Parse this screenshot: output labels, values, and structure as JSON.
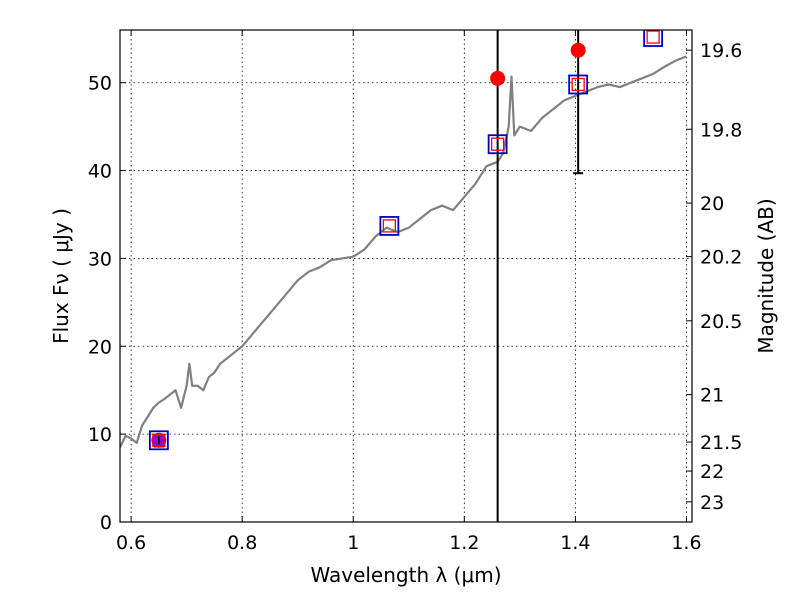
{
  "chart_data": {
    "type": "line",
    "xlabel": "Wavelength  λ (μm)",
    "ylabel_left": "Flux  Fν  ( μJy )",
    "ylabel_right": "Magnitude (AB)",
    "xlim": [
      0.58,
      1.61
    ],
    "ylim": [
      0,
      56
    ],
    "grid": true,
    "x_ticks": [
      0.6,
      0.8,
      1.0,
      1.2,
      1.4,
      1.6
    ],
    "x_tick_labels": [
      "0.6",
      "0.8",
      "1",
      "1.2",
      "1.4",
      "1.6"
    ],
    "y_ticks": [
      0,
      10,
      20,
      30,
      40,
      50
    ],
    "y_tick_labels": [
      "0",
      "10",
      "20",
      "30",
      "40",
      "50"
    ],
    "right_ticks": [
      {
        "flux": 53.7,
        "label": "19.6"
      },
      {
        "flux": 44.7,
        "label": "19.8"
      },
      {
        "flux": 36.3,
        "label": "20"
      },
      {
        "flux": 30.2,
        "label": "20.2"
      },
      {
        "flux": 22.9,
        "label": "20.5"
      },
      {
        "flux": 14.5,
        "label": "21"
      },
      {
        "flux": 9.1,
        "label": "21.5"
      },
      {
        "flux": 5.8,
        "label": "22"
      },
      {
        "flux": 2.3,
        "label": "23"
      }
    ],
    "vertical_lines": [
      {
        "x": 1.26,
        "color": "#000000"
      }
    ],
    "colors": {
      "spectrum": "#808080",
      "observed": "#ff0000",
      "model_box": "#0000cc",
      "model_inner": "#ff0000",
      "first_point": "#9900cc"
    },
    "spectrum": {
      "x": [
        0.58,
        0.59,
        0.6,
        0.61,
        0.62,
        0.63,
        0.64,
        0.65,
        0.66,
        0.67,
        0.68,
        0.69,
        0.7,
        0.705,
        0.71,
        0.72,
        0.73,
        0.74,
        0.75,
        0.76,
        0.77,
        0.78,
        0.79,
        0.8,
        0.82,
        0.84,
        0.86,
        0.88,
        0.9,
        0.92,
        0.94,
        0.96,
        0.98,
        1.0,
        1.02,
        1.04,
        1.06,
        1.08,
        1.1,
        1.12,
        1.14,
        1.16,
        1.18,
        1.2,
        1.22,
        1.24,
        1.26,
        1.27,
        1.28,
        1.285,
        1.29,
        1.3,
        1.32,
        1.34,
        1.36,
        1.38,
        1.4,
        1.42,
        1.44,
        1.46,
        1.48,
        1.5,
        1.52,
        1.54,
        1.56,
        1.58,
        1.6
      ],
      "y": [
        8.5,
        9.8,
        9.5,
        9.0,
        11.0,
        12.0,
        13.0,
        13.6,
        14.0,
        14.5,
        15.0,
        13.0,
        15.5,
        18.0,
        15.5,
        15.5,
        15.0,
        16.5,
        17.0,
        18.0,
        18.5,
        19.0,
        19.5,
        20.0,
        21.5,
        23.0,
        24.5,
        26.0,
        27.5,
        28.5,
        29.0,
        29.8,
        30.0,
        30.2,
        31.0,
        32.5,
        33.5,
        33.0,
        33.5,
        34.5,
        35.5,
        36.0,
        35.5,
        37.0,
        38.5,
        40.5,
        41.0,
        42.0,
        45.0,
        50.7,
        44.0,
        45.0,
        44.5,
        46.0,
        47.0,
        48.0,
        48.5,
        49.0,
        49.5,
        49.8,
        49.5,
        50.0,
        50.5,
        51.0,
        51.8,
        52.5,
        53.0
      ]
    },
    "observed": [
      {
        "x": 0.65,
        "y": 9.3,
        "yerr": 0.7
      },
      {
        "x": 1.26,
        "y": 50.5,
        "yerr": 0
      },
      {
        "x": 1.405,
        "y": 53.7,
        "yerr": 14.0
      }
    ],
    "model": [
      {
        "x": 0.65,
        "y": 9.3
      },
      {
        "x": 1.065,
        "y": 33.7
      },
      {
        "x": 1.26,
        "y": 43.0
      },
      {
        "x": 1.405,
        "y": 49.8
      },
      {
        "x": 1.54,
        "y": 55.2
      }
    ]
  }
}
